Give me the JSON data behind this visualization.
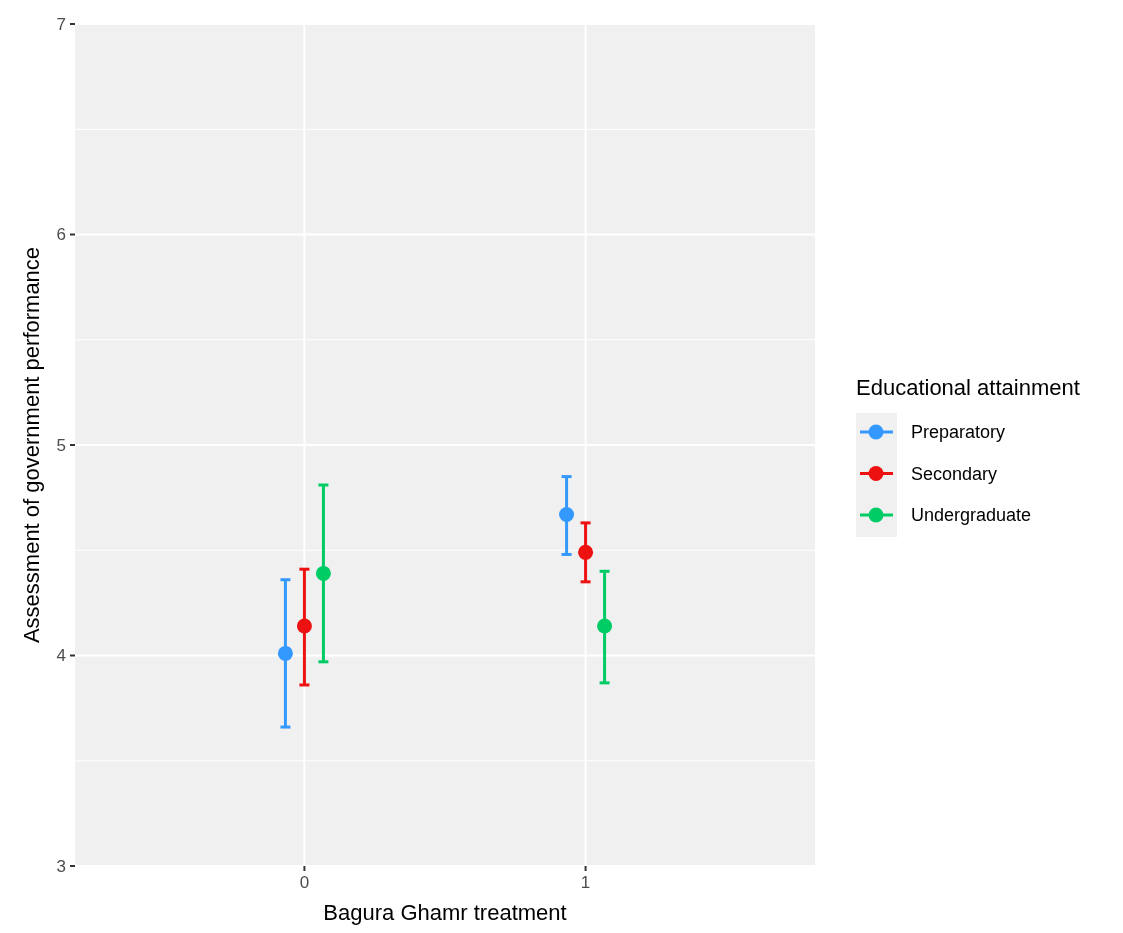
{
  "chart_data": {
    "type": "scatter",
    "xlabel": "Bagura Ghamr treatment",
    "ylabel": "Assessment of government performance",
    "legend_title": "Educational attainment",
    "categories": [
      "0",
      "1"
    ],
    "series": [
      {
        "name": "Preparatory",
        "color": "#3399ff",
        "values": [
          4.01,
          4.67
        ],
        "errors": [
          [
            3.66,
            4.36
          ],
          [
            4.48,
            4.85
          ]
        ]
      },
      {
        "name": "Secondary",
        "color": "#ee1111",
        "values": [
          4.14,
          4.49
        ],
        "errors": [
          [
            3.86,
            4.41
          ],
          [
            4.35,
            4.63
          ]
        ]
      },
      {
        "name": "Undergraduate",
        "color": "#00cc66",
        "values": [
          4.39,
          4.14
        ],
        "errors": [
          [
            3.97,
            4.81
          ],
          [
            3.87,
            4.4
          ]
        ]
      }
    ],
    "ylim": [
      3,
      7
    ],
    "yticks": [
      3,
      4,
      5,
      6,
      7
    ],
    "grid": true,
    "legend": "right",
    "marker": "circle"
  }
}
